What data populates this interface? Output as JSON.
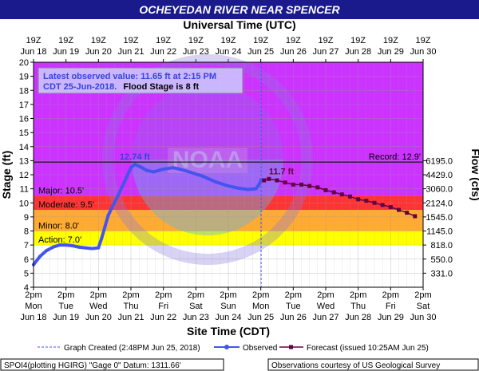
{
  "header": {
    "title": "OCHEYEDAN RIVER NEAR SPENCER",
    "top_axis_label": "Universal Time (UTC)",
    "bottom_axis_label": "Site Time (CDT)",
    "left_axis_label": "Stage (ft)",
    "right_axis_label": "Flow (cfs)"
  },
  "info_box": {
    "line1": "Latest observed value: 11.65 ft at 2:15 PM",
    "line2_part1": "CDT 25-Jun-2018.",
    "line2_part2": "Flood Stage is 8 ft"
  },
  "legend": {
    "created": "Graph Created (2:48PM Jun 25, 2018)",
    "observed": "Observed",
    "forecast": "Forecast (issued 10:25AM Jun 25)"
  },
  "footer": {
    "left": "SPOI4(plotting HGIRG) \"Gage 0\" Datum: 1311.66'",
    "right": "Observations courtesy of US Geological Survey"
  },
  "colors": {
    "title_bg": "#1a1a8c",
    "observed": "#4455ee",
    "forecast": "#660044",
    "action": "#ffff00",
    "minor": "#ffaa33",
    "moderate": "#ff3333",
    "major": "#cc33ff",
    "label_blue": "#3344dd",
    "label_forecast": "#660044"
  },
  "chart_data": {
    "type": "line",
    "title": "OCHEYEDAN RIVER NEAR SPENCER",
    "xlabel": "Site Time (CDT)",
    "ylabel": "Stage (ft)",
    "y2label": "Flow (cfs)",
    "ylim": [
      4,
      20
    ],
    "y_ticks": [
      4,
      5,
      6,
      7,
      8,
      9,
      10,
      11,
      12,
      13,
      14,
      15,
      16,
      17,
      18,
      19,
      20
    ],
    "x_range_days": [
      "Jun 18",
      "Jun 30"
    ],
    "grid": true,
    "top_ticks": [
      {
        "l1": "19Z",
        "l2": "Jun 18"
      },
      {
        "l1": "19Z",
        "l2": "Jun 19"
      },
      {
        "l1": "19Z",
        "l2": "Jun 20"
      },
      {
        "l1": "19Z",
        "l2": "Jun 21"
      },
      {
        "l1": "19Z",
        "l2": "Jun 22"
      },
      {
        "l1": "19Z",
        "l2": "Jun 23"
      },
      {
        "l1": "19Z",
        "l2": "Jun 24"
      },
      {
        "l1": "19Z",
        "l2": "Jun 25"
      },
      {
        "l1": "19Z",
        "l2": "Jun 26"
      },
      {
        "l1": "19Z",
        "l2": "Jun 27"
      },
      {
        "l1": "19Z",
        "l2": "Jun 28"
      },
      {
        "l1": "19Z",
        "l2": "Jun 29"
      },
      {
        "l1": "19Z",
        "l2": "Jun 30"
      }
    ],
    "bottom_ticks": [
      {
        "l1": "2pm",
        "l2": "Mon",
        "l3": "Jun 18"
      },
      {
        "l1": "2pm",
        "l2": "Tue",
        "l3": "Jun 19"
      },
      {
        "l1": "2pm",
        "l2": "Wed",
        "l3": "Jun 20"
      },
      {
        "l1": "2pm",
        "l2": "Thu",
        "l3": "Jun 21"
      },
      {
        "l1": "2pm",
        "l2": "Fri",
        "l3": "Jun 22"
      },
      {
        "l1": "2pm",
        "l2": "Sat",
        "l3": "Jun 23"
      },
      {
        "l1": "2pm",
        "l2": "Sun",
        "l3": "Jun 24"
      },
      {
        "l1": "2pm",
        "l2": "Mon",
        "l3": "Jun 25"
      },
      {
        "l1": "2pm",
        "l2": "Tue",
        "l3": "Jun 26"
      },
      {
        "l1": "2pm",
        "l2": "Wed",
        "l3": "Jun 27"
      },
      {
        "l1": "2pm",
        "l2": "Thu",
        "l3": "Jun 28"
      },
      {
        "l1": "2pm",
        "l2": "Fri",
        "l3": "Jun 29"
      },
      {
        "l1": "2pm",
        "l2": "Sat",
        "l3": "Jun 30"
      }
    ],
    "flow_ticks": [
      {
        "stage": 5,
        "label": "331.0"
      },
      {
        "stage": 6,
        "label": "550.0"
      },
      {
        "stage": 7,
        "label": "818.0"
      },
      {
        "stage": 8,
        "label": "1145.0"
      },
      {
        "stage": 9,
        "label": "1545.0"
      },
      {
        "stage": 10,
        "label": "2124.0"
      },
      {
        "stage": 11,
        "label": "3060.0"
      },
      {
        "stage": 12,
        "label": "4429.0"
      },
      {
        "stage": 13,
        "label": "6195.0"
      }
    ],
    "categories_stage": [
      {
        "name": "Action",
        "label": "Action: 7.0'",
        "from": 7.0,
        "to": 8.0,
        "color": "#ffff00"
      },
      {
        "name": "Minor",
        "label": "Minor: 8.0'",
        "from": 8.0,
        "to": 9.5,
        "color": "#ffaa33"
      },
      {
        "name": "Moderate",
        "label": "Moderate: 9.5'",
        "from": 9.5,
        "to": 10.5,
        "color": "#ff3333"
      },
      {
        "name": "Major",
        "label": "Major: 10.5'",
        "from": 10.5,
        "to": 20,
        "color": "#cc33ff"
      }
    ],
    "record": {
      "label": "Record: 12.9'",
      "value": 12.9
    },
    "now_day": 7.01,
    "series": [
      {
        "name": "Observed",
        "color": "#4455ee",
        "peak_label": "12.74 ft",
        "peak": {
          "x": 3.12,
          "y": 12.74
        },
        "x": [
          0.0,
          0.2,
          0.4,
          0.6,
          0.8,
          1.0,
          1.2,
          1.4,
          1.6,
          1.8,
          2.0,
          2.1,
          2.2,
          2.3,
          2.4,
          2.6,
          2.8,
          3.0,
          3.12,
          3.3,
          3.5,
          3.7,
          4.0,
          4.3,
          4.5,
          4.8,
          5.2,
          5.6,
          6.0,
          6.3,
          6.6,
          6.85,
          6.95,
          7.01
        ],
        "y": [
          5.6,
          6.2,
          6.6,
          6.85,
          7.0,
          7.0,
          6.95,
          6.85,
          6.8,
          6.75,
          6.8,
          7.5,
          8.3,
          9.1,
          9.6,
          10.5,
          11.5,
          12.5,
          12.74,
          12.55,
          12.3,
          12.2,
          12.4,
          12.5,
          12.4,
          12.2,
          11.9,
          11.5,
          11.2,
          11.05,
          10.95,
          11.0,
          11.3,
          11.65
        ]
      },
      {
        "name": "Forecast",
        "color": "#660044",
        "peak_label": "11.7 ft",
        "peak": {
          "x": 7.25,
          "y": 11.7
        },
        "x": [
          7.1,
          7.25,
          7.5,
          7.75,
          8.0,
          8.25,
          8.5,
          8.75,
          9.0,
          9.25,
          9.5,
          9.75,
          10.0,
          10.25,
          10.5,
          10.75,
          11.0,
          11.25,
          11.5,
          11.75
        ],
        "y": [
          11.6,
          11.7,
          11.6,
          11.45,
          11.3,
          11.3,
          11.2,
          11.1,
          10.9,
          10.75,
          10.6,
          10.45,
          10.25,
          10.15,
          10.0,
          9.85,
          9.7,
          9.5,
          9.3,
          9.05
        ]
      }
    ]
  }
}
